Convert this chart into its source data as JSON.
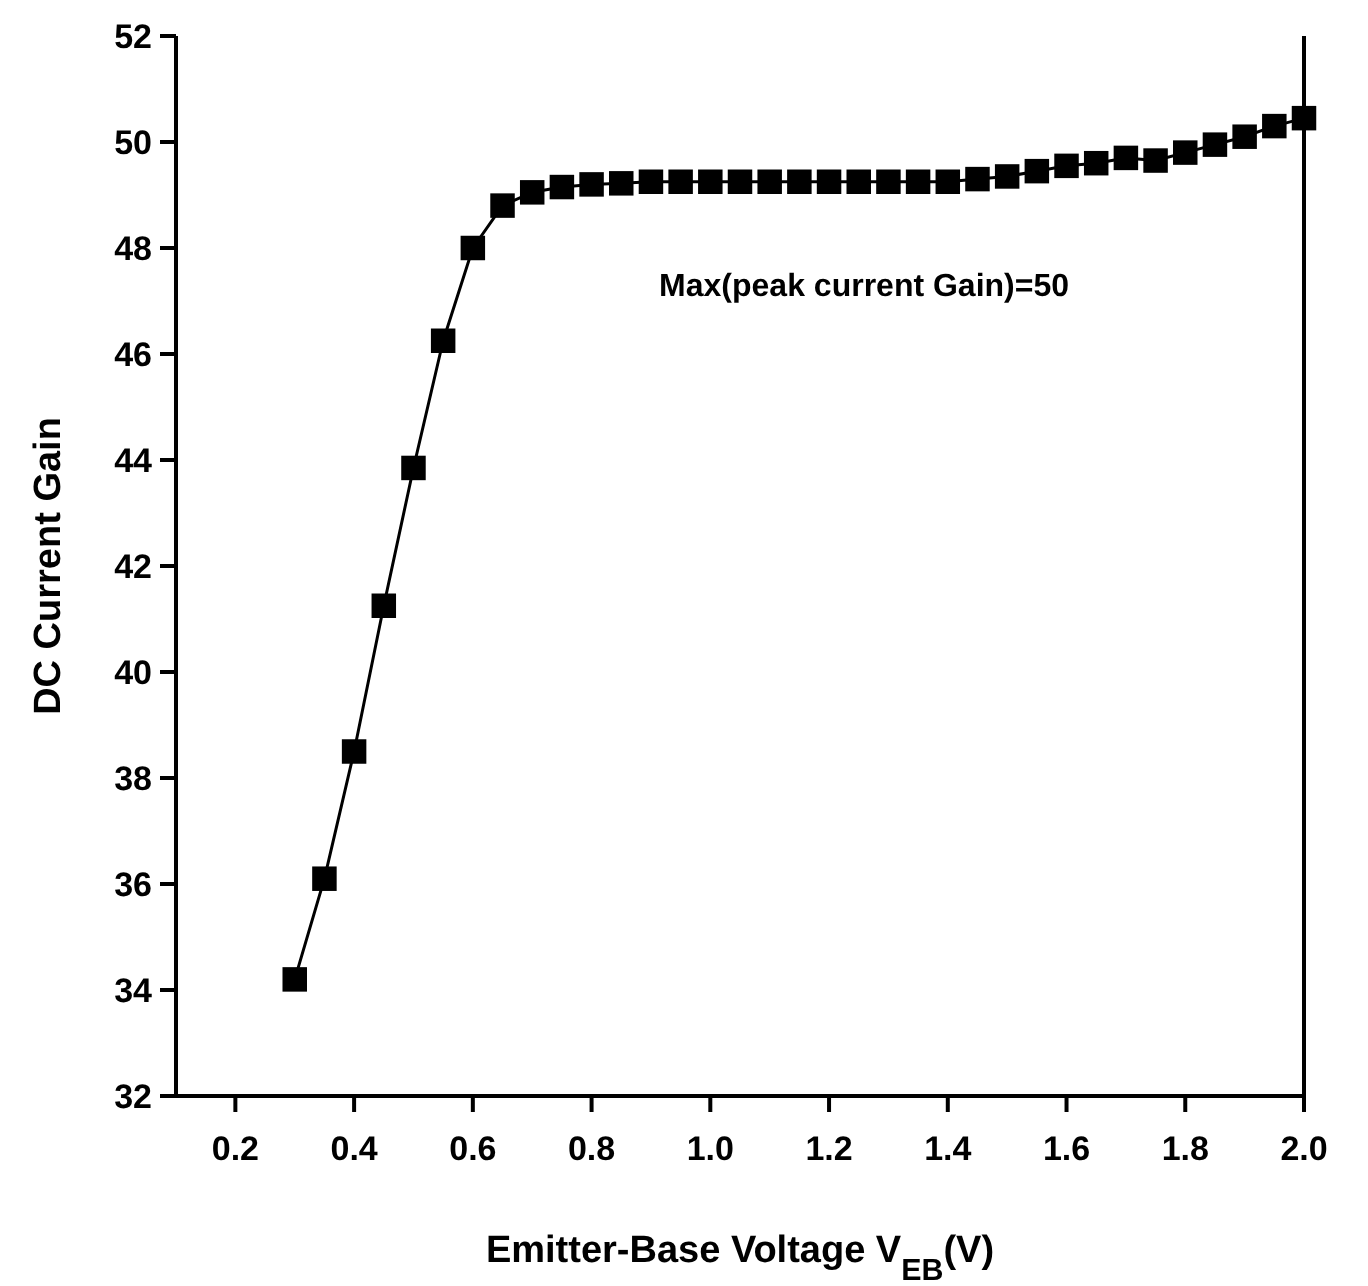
{
  "chart_data": {
    "type": "line",
    "xlabel": "Emitter-Base Voltage V$_{EB}$(V)",
    "ylabel": "DC Current Gain",
    "annotations": [
      "Max(peak current Gain)=50"
    ],
    "x": [
      0.3,
      0.35,
      0.4,
      0.45,
      0.5,
      0.55,
      0.6,
      0.65,
      0.7,
      0.75,
      0.8,
      0.85,
      0.9,
      0.95,
      1.0,
      1.05,
      1.1,
      1.15,
      1.2,
      1.25,
      1.3,
      1.35,
      1.4,
      1.45,
      1.5,
      1.55,
      1.6,
      1.65,
      1.7,
      1.75,
      1.8,
      1.85,
      1.9,
      1.95,
      2.0
    ],
    "series": [
      {
        "color": "#000000",
        "values": [
          34.2,
          36.1,
          38.5,
          41.25,
          43.85,
          46.25,
          48.0,
          48.8,
          49.05,
          49.15,
          49.2,
          49.22,
          49.25,
          49.25,
          49.25,
          49.25,
          49.25,
          49.25,
          49.25,
          49.25,
          49.25,
          49.25,
          49.25,
          49.3,
          49.35,
          49.45,
          49.55,
          49.6,
          49.7,
          49.65,
          49.8,
          49.95,
          50.1,
          50.3,
          50.45
        ]
      }
    ],
    "xlim": [
      0.1,
      2.0
    ],
    "xticks": [
      {
        "value": 0.2,
        "label": "0.2"
      },
      {
        "value": 0.4,
        "label": "0.4"
      },
      {
        "value": 0.6,
        "label": "0.6"
      },
      {
        "value": 0.8,
        "label": "0.8"
      },
      {
        "value": 1.0,
        "label": "1.0"
      },
      {
        "value": 1.2,
        "label": "1.2"
      },
      {
        "value": 1.4,
        "label": "1.4"
      },
      {
        "value": 1.6,
        "label": "1.6"
      },
      {
        "value": 1.8,
        "label": "1.8"
      },
      {
        "value": 2.0,
        "label": "2.0"
      }
    ],
    "ylim": [
      32,
      52
    ],
    "yticks": [
      32,
      34,
      36,
      38,
      40,
      42,
      44,
      46,
      48,
      50,
      52
    ],
    "marker": "square",
    "line_style": "solid",
    "grid": false
  }
}
